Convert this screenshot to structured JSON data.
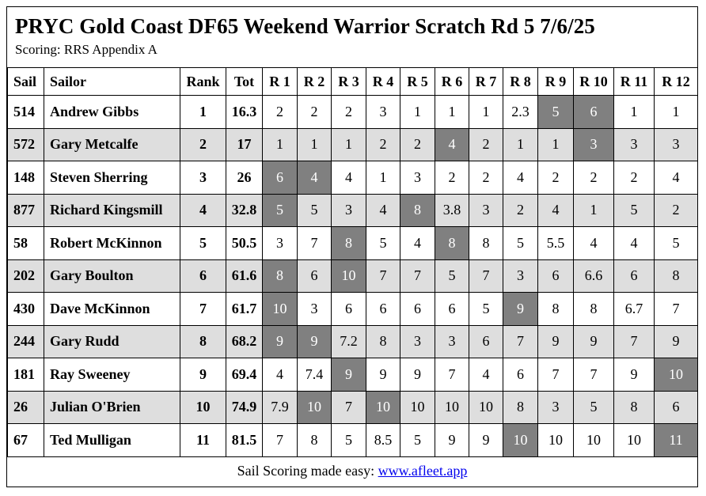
{
  "title": "PRYC Gold Coast DF65 Weekend Warrior Scratch Rd 5 7/6/25",
  "subtitle": "Scoring: RRS Appendix A",
  "columns": [
    "Sail",
    "Sailor",
    "Rank",
    "Tot",
    "R 1",
    "R 2",
    "R 3",
    "R 4",
    "R 5",
    "R 6",
    "R 7",
    "R 8",
    "R 9",
    "R 10",
    "R 11",
    "R 12"
  ],
  "rows": [
    {
      "sail": "514",
      "sailor": "Andrew Gibbs",
      "rank": "1",
      "tot": "16.3",
      "races": [
        "2",
        "2",
        "2",
        "3",
        "1",
        "1",
        "1",
        "2.3",
        "5",
        "6",
        "1",
        "1"
      ],
      "discards": [
        8,
        9
      ]
    },
    {
      "sail": "572",
      "sailor": "Gary Metcalfe",
      "rank": "2",
      "tot": "17",
      "races": [
        "1",
        "1",
        "1",
        "2",
        "2",
        "4",
        "2",
        "1",
        "1",
        "3",
        "3",
        "3"
      ],
      "discards": [
        5,
        9
      ]
    },
    {
      "sail": "148",
      "sailor": "Steven Sherring",
      "rank": "3",
      "tot": "26",
      "races": [
        "6",
        "4",
        "4",
        "1",
        "3",
        "2",
        "2",
        "4",
        "2",
        "2",
        "2",
        "4"
      ],
      "discards": [
        0,
        1
      ]
    },
    {
      "sail": "877",
      "sailor": "Richard Kingsmill",
      "rank": "4",
      "tot": "32.8",
      "races": [
        "5",
        "5",
        "3",
        "4",
        "8",
        "3.8",
        "3",
        "2",
        "4",
        "1",
        "5",
        "2"
      ],
      "discards": [
        0,
        4
      ]
    },
    {
      "sail": "58",
      "sailor": "Robert McKinnon",
      "rank": "5",
      "tot": "50.5",
      "races": [
        "3",
        "7",
        "8",
        "5",
        "4",
        "8",
        "8",
        "5",
        "5.5",
        "4",
        "4",
        "5"
      ],
      "discards": [
        2,
        5
      ]
    },
    {
      "sail": "202",
      "sailor": "Gary Boulton",
      "rank": "6",
      "tot": "61.6",
      "races": [
        "8",
        "6",
        "10",
        "7",
        "7",
        "5",
        "7",
        "3",
        "6",
        "6.6",
        "6",
        "8"
      ],
      "discards": [
        0,
        2
      ]
    },
    {
      "sail": "430",
      "sailor": "Dave McKinnon",
      "rank": "7",
      "tot": "61.7",
      "races": [
        "10",
        "3",
        "6",
        "6",
        "6",
        "6",
        "5",
        "9",
        "8",
        "8",
        "6.7",
        "7"
      ],
      "discards": [
        0,
        7
      ]
    },
    {
      "sail": "244",
      "sailor": "Gary Rudd",
      "rank": "8",
      "tot": "68.2",
      "races": [
        "9",
        "9",
        "7.2",
        "8",
        "3",
        "3",
        "6",
        "7",
        "9",
        "9",
        "7",
        "9"
      ],
      "discards": [
        0,
        1
      ]
    },
    {
      "sail": "181",
      "sailor": "Ray Sweeney",
      "rank": "9",
      "tot": "69.4",
      "races": [
        "4",
        "7.4",
        "9",
        "9",
        "9",
        "7",
        "4",
        "6",
        "7",
        "7",
        "9",
        "10"
      ],
      "discards": [
        2,
        11
      ]
    },
    {
      "sail": "26",
      "sailor": "Julian O'Brien",
      "rank": "10",
      "tot": "74.9",
      "races": [
        "7.9",
        "10",
        "7",
        "10",
        "10",
        "10",
        "10",
        "8",
        "3",
        "5",
        "8",
        "6"
      ],
      "discards": [
        1,
        3
      ]
    },
    {
      "sail": "67",
      "sailor": "Ted Mulligan",
      "rank": "11",
      "tot": "81.5",
      "races": [
        "7",
        "8",
        "5",
        "8.5",
        "5",
        "9",
        "9",
        "10",
        "10",
        "10",
        "10",
        "11"
      ],
      "discards": [
        7,
        11
      ]
    }
  ],
  "footer": {
    "text": "Sail Scoring made easy: ",
    "link_text": "www.afleet.app"
  },
  "colors": {
    "discard_bg": "#808080",
    "alt_row_bg": "#dedede"
  }
}
